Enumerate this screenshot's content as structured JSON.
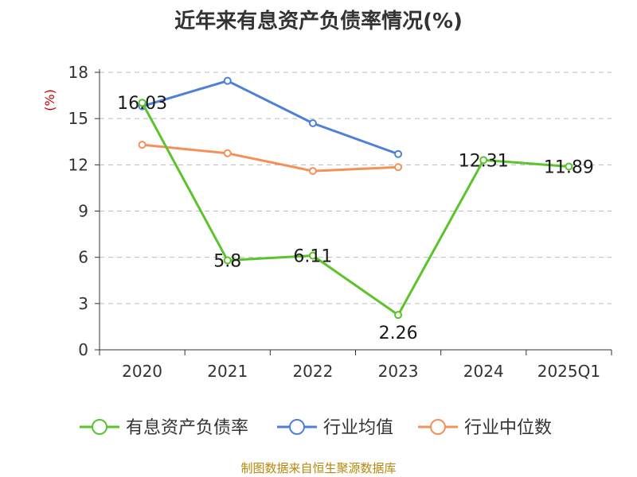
{
  "chart_data": {
    "type": "line",
    "title": "近年来有息资产负债率情况(%)",
    "ylabel": "(%)",
    "xlabel": "",
    "categories": [
      "2020",
      "2021",
      "2022",
      "2023",
      "2024",
      "2025Q1"
    ],
    "ylim": [
      0,
      18
    ],
    "yticks": [
      0,
      3,
      6,
      9,
      12,
      15,
      18
    ],
    "grid": true,
    "legend_position": "bottom",
    "series": [
      {
        "name": "有息资产负债率",
        "color": "#5bc42b",
        "values": [
          16.03,
          5.8,
          6.11,
          2.26,
          12.31,
          11.89
        ],
        "labels": [
          "16.03",
          "5.8",
          "6.11",
          "2.26",
          "12.31",
          "11.89"
        ]
      },
      {
        "name": "行业均值",
        "color": "#4e7fdc",
        "values": [
          15.8,
          17.45,
          14.7,
          12.7,
          null,
          null
        ]
      },
      {
        "name": "行业中位数",
        "color": "#f4905a",
        "values": [
          13.3,
          12.75,
          11.6,
          11.85,
          null,
          null
        ]
      }
    ]
  },
  "source_text": "制图数据来自恒生聚源数据库"
}
